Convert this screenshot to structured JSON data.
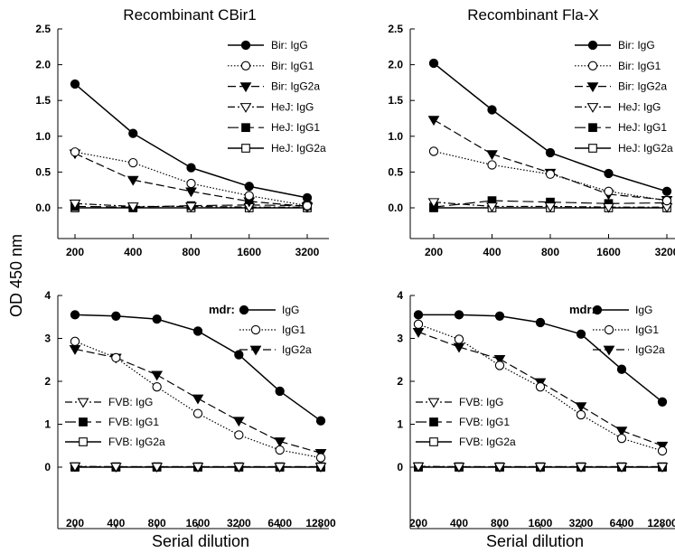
{
  "figure": {
    "ylabel": "OD 450 nm"
  },
  "chart_data": [
    {
      "type": "line",
      "title": "Recombinant CBir1",
      "xlabel": "",
      "ylabel": "OD 450 nm",
      "categories": [
        "200",
        "400",
        "800",
        "1600",
        "3200"
      ],
      "ylim": [
        0,
        2.5
      ],
      "yticks": [
        "0.0",
        "0.5",
        "1.0",
        "1.5",
        "2.0",
        "2.5"
      ],
      "legend_position": "top-right",
      "series": [
        {
          "name": "Bir:  IgG",
          "marker": "circle-filled",
          "line": "solid",
          "values": [
            1.73,
            1.04,
            0.56,
            0.3,
            0.14
          ]
        },
        {
          "name": "Bir:  IgG1",
          "marker": "circle-open",
          "line": "dotted",
          "values": [
            0.78,
            0.63,
            0.34,
            0.17,
            0.03
          ]
        },
        {
          "name": "Bir:  IgG2a",
          "marker": "triangle-filled",
          "line": "dashed",
          "values": [
            0.76,
            0.39,
            0.23,
            0.09,
            0.02
          ]
        },
        {
          "name": "HeJ:  IgG",
          "marker": "triangle-open",
          "line": "dashdot",
          "values": [
            0.06,
            0.02,
            0.02,
            0.01,
            0.01
          ]
        },
        {
          "name": "HeJ:  IgG1",
          "marker": "square-filled",
          "line": "longdash",
          "values": [
            0.02,
            0.01,
            0.03,
            0.04,
            0.03
          ]
        },
        {
          "name": "HeJ:  IgG2a",
          "marker": "square-open",
          "line": "solid",
          "values": [
            0.0,
            0.0,
            0.0,
            0.0,
            0.0
          ]
        }
      ]
    },
    {
      "type": "line",
      "title": "Recombinant Fla-X",
      "xlabel": "",
      "ylabel": "",
      "categories": [
        "200",
        "400",
        "800",
        "1600",
        "3200"
      ],
      "ylim": [
        0,
        2.5
      ],
      "yticks": [
        "0.0",
        "0.5",
        "1.0",
        "1.5",
        "2.0",
        "2.5"
      ],
      "legend_position": "top-right",
      "series": [
        {
          "name": "Bir:  IgG",
          "marker": "circle-filled",
          "line": "solid",
          "values": [
            2.02,
            1.37,
            0.77,
            0.48,
            0.23
          ]
        },
        {
          "name": "Bir:  IgG1",
          "marker": "circle-open",
          "line": "dotted",
          "values": [
            0.79,
            0.6,
            0.47,
            0.23,
            0.1
          ]
        },
        {
          "name": "Bir:  IgG2a",
          "marker": "triangle-filled",
          "line": "dashed",
          "values": [
            1.23,
            0.75,
            0.49,
            0.19,
            0.11
          ]
        },
        {
          "name": "HeJ:  IgG",
          "marker": "triangle-open",
          "line": "dashdot",
          "values": [
            0.08,
            0.02,
            0.02,
            0.01,
            0.01
          ]
        },
        {
          "name": "HeJ:  IgG1",
          "marker": "square-filled",
          "line": "longdash",
          "values": [
            0.01,
            0.1,
            0.08,
            0.06,
            0.07
          ]
        },
        {
          "name": "HeJ:  IgG2a",
          "marker": "square-open",
          "line": "solid",
          "values": [
            0.0,
            0.0,
            0.0,
            0.0,
            0.0
          ]
        }
      ]
    },
    {
      "type": "line",
      "title": "",
      "xlabel": "Serial dilution",
      "ylabel": "",
      "categories": [
        "200",
        "400",
        "800",
        "1600",
        "3200",
        "6400",
        "12800"
      ],
      "ylim": [
        0,
        4
      ],
      "yticks": [
        "0",
        "1",
        "2",
        "3",
        "4"
      ],
      "legend_groups": [
        {
          "prefix": "mdr:",
          "position": "top-right"
        },
        {
          "prefix": "",
          "position": "middle-left"
        }
      ],
      "series": [
        {
          "name": "IgG",
          "marker": "circle-filled",
          "line": "solid",
          "values": [
            3.55,
            3.52,
            3.45,
            3.17,
            2.62,
            1.77,
            1.08
          ]
        },
        {
          "name": "IgG1",
          "marker": "circle-open",
          "line": "dotted",
          "values": [
            2.93,
            2.55,
            1.87,
            1.25,
            0.75,
            0.4,
            0.22
          ]
        },
        {
          "name": "IgG2a",
          "marker": "triangle-filled",
          "line": "dashed",
          "values": [
            2.75,
            2.55,
            2.15,
            1.6,
            1.08,
            0.6,
            0.33
          ]
        },
        {
          "name": "FVB:  IgG",
          "marker": "triangle-open",
          "line": "dashdot",
          "values": [
            0.02,
            0.01,
            0.01,
            0.01,
            0.01,
            0.01,
            0.01
          ]
        },
        {
          "name": "FVB:  IgG1",
          "marker": "square-filled",
          "line": "longdash",
          "values": [
            0.01,
            0.01,
            0.01,
            0.01,
            0.01,
            0.01,
            0.01
          ]
        },
        {
          "name": "FVB:  IgG2a",
          "marker": "square-open",
          "line": "solid",
          "values": [
            0.0,
            0.0,
            0.0,
            0.0,
            0.0,
            0.0,
            0.0
          ]
        }
      ]
    },
    {
      "type": "line",
      "title": "",
      "xlabel": "Serial dilution",
      "ylabel": "",
      "categories": [
        "200",
        "400",
        "800",
        "1600",
        "3200",
        "6400",
        "12800"
      ],
      "ylim": [
        0,
        4
      ],
      "yticks": [
        "0",
        "1",
        "2",
        "3",
        "4"
      ],
      "legend_groups": [
        {
          "prefix": "mdr:",
          "position": "top-right"
        },
        {
          "prefix": "",
          "position": "middle-left"
        }
      ],
      "series": [
        {
          "name": "IgG",
          "marker": "circle-filled",
          "line": "solid",
          "values": [
            3.55,
            3.55,
            3.52,
            3.37,
            3.1,
            2.28,
            1.52
          ]
        },
        {
          "name": "IgG1",
          "marker": "circle-open",
          "line": "dotted",
          "values": [
            3.33,
            2.98,
            2.37,
            1.87,
            1.22,
            0.67,
            0.38
          ]
        },
        {
          "name": "IgG2a",
          "marker": "triangle-filled",
          "line": "dashed",
          "values": [
            3.15,
            2.8,
            2.52,
            1.98,
            1.42,
            0.85,
            0.5
          ]
        },
        {
          "name": "FVB:  IgG",
          "marker": "triangle-open",
          "line": "dashdot",
          "values": [
            0.02,
            0.01,
            0.01,
            0.01,
            0.01,
            0.01,
            0.01
          ]
        },
        {
          "name": "FVB:  IgG1",
          "marker": "square-filled",
          "line": "longdash",
          "values": [
            0.01,
            0.01,
            0.01,
            0.01,
            0.01,
            0.01,
            0.01
          ]
        },
        {
          "name": "FVB:  IgG2a",
          "marker": "square-open",
          "line": "solid",
          "values": [
            0.0,
            0.0,
            0.0,
            0.0,
            0.0,
            0.0,
            0.0
          ]
        }
      ]
    }
  ]
}
